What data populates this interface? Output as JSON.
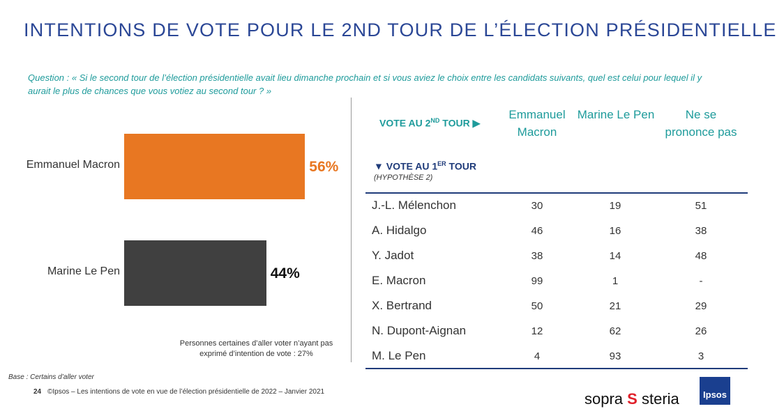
{
  "header": {
    "title": "INTENTIONS DE VOTE POUR LE 2ND TOUR DE L’ÉLECTION PRÉSIDENTIELLE",
    "question": "Question : « Si le second tour de l’élection présidentielle avait lieu dimanche prochain et si vous aviez le choix entre les candidats suivants, quel est celui pour lequel il y aurait le plus de chances que vous votiez au second tour ? »"
  },
  "chart_data": {
    "type": "bar",
    "orientation": "horizontal",
    "categories": [
      "Emmanuel Macron",
      "Marine Le Pen"
    ],
    "values": [
      56,
      44
    ],
    "value_labels": [
      "56%",
      "44%"
    ],
    "colors": [
      "#e87722",
      "#404040"
    ],
    "value_label_colors": [
      "#e87722",
      "#111111"
    ],
    "note": "Personnes certaines d’aller voter n’ayant pas exprimé d’intention de vote : 27%"
  },
  "table": {
    "second_round": {
      "text": "VOTE AU 2",
      "sup": "ND",
      "after": " TOUR ▶"
    },
    "first_round": {
      "text": "▼  VOTE AU 1",
      "sup": "ER",
      "after": " TOUR"
    },
    "hypothesis": "(HYPOTHÈSE 2)",
    "columns": [
      "Emmanuel Macron",
      "Marine Le Pen",
      "Ne se prononce pas"
    ],
    "rows": [
      [
        "J.-L. Mélenchon",
        "30",
        "19",
        "51"
      ],
      [
        "A. Hidalgo",
        "46",
        "16",
        "38"
      ],
      [
        "Y. Jadot",
        "38",
        "14",
        "48"
      ],
      [
        "E. Macron",
        "99",
        "1",
        "-"
      ],
      [
        "X. Bertrand",
        "50",
        "21",
        "29"
      ],
      [
        "N. Dupont-Aignan",
        "12",
        "62",
        "26"
      ],
      [
        "M. Le Pen",
        "4",
        "93",
        "3"
      ]
    ]
  },
  "footer": {
    "base": "Base : Certains d’aller voter",
    "page": "24",
    "source": "©Ipsos – Les intentions de vote en vue de l’élection présidentielle de 2022 – Janvier 2021",
    "logo1a": "sopra",
    "logo1b": "steria",
    "logo2": "Ipsos"
  }
}
